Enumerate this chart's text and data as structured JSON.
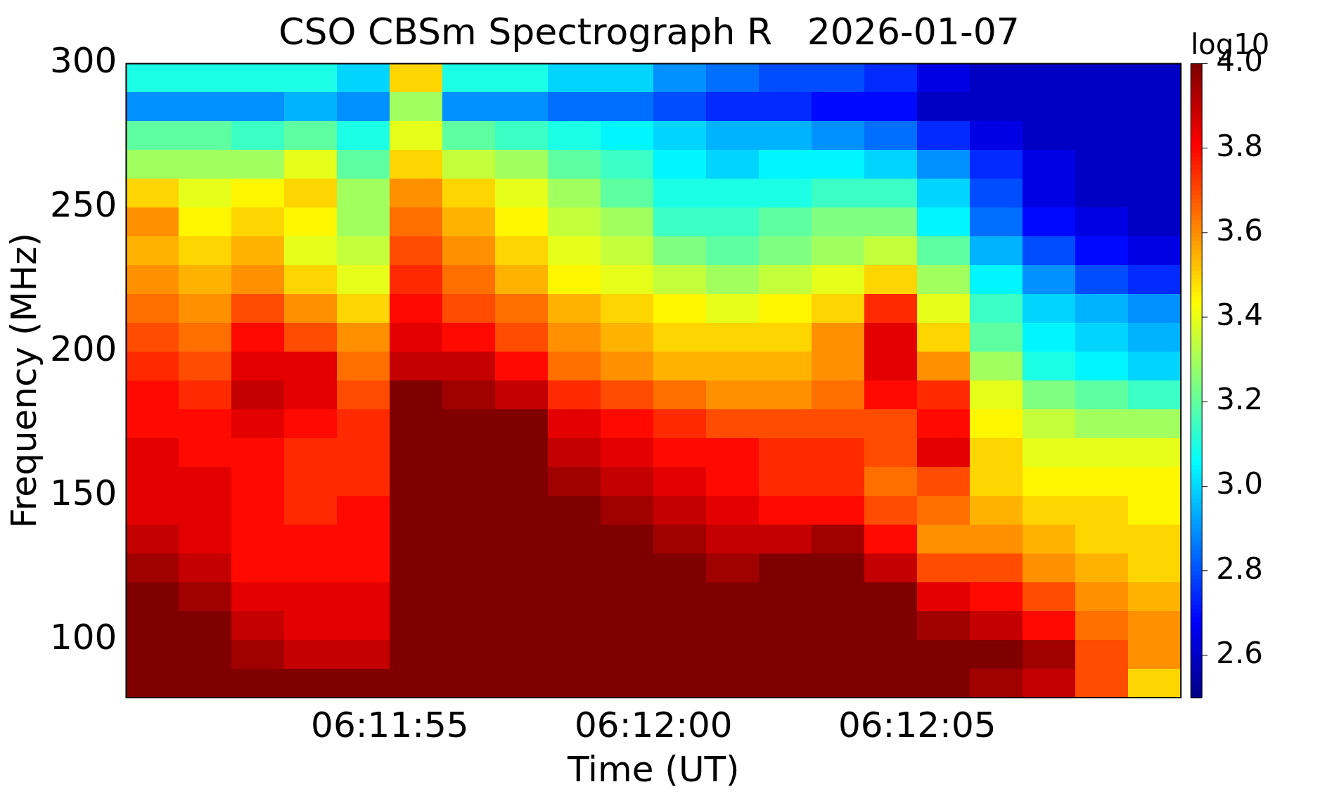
{
  "chart_data": {
    "type": "heatmap",
    "title": "CSO CBSm Spectrograph R   2026-01-07",
    "xlabel": "Time (UT)",
    "ylabel": "Frequency (MHz)",
    "clabel": "log10",
    "xlim": [
      6.1972222,
      6.2027778
    ],
    "xticks": [
      {
        "value": 6.1986111,
        "label": "06:11:55"
      },
      {
        "value": 6.2,
        "label": "06:12:00"
      },
      {
        "value": 6.2013889,
        "label": "06:12:05"
      }
    ],
    "ylim": [
      80,
      300
    ],
    "yticks": [
      100,
      150,
      200,
      250,
      300
    ],
    "clim": [
      2.5,
      4.0
    ],
    "cticks": [
      2.6,
      2.8,
      {
        "value": 3.0,
        "label": "3.0"
      },
      3.2,
      3.4,
      3.6,
      3.8,
      {
        "value": 4.0,
        "label": "4.0"
      }
    ],
    "cells": [
      [
        3.1,
        3.1,
        3.1,
        3.1,
        3.0,
        3.5,
        3.1,
        3.1,
        3.0,
        3.0,
        2.9,
        2.85,
        2.8,
        2.8,
        2.75,
        2.65,
        2.6,
        2.6,
        2.6,
        2.6
      ],
      [
        2.9,
        2.9,
        2.9,
        2.95,
        2.9,
        3.3,
        2.9,
        2.9,
        2.85,
        2.85,
        2.8,
        2.75,
        2.75,
        2.7,
        2.7,
        2.6,
        2.6,
        2.6,
        2.6,
        2.6
      ],
      [
        3.2,
        3.2,
        3.15,
        3.2,
        3.1,
        3.4,
        3.2,
        3.15,
        3.1,
        3.05,
        3.0,
        2.95,
        2.95,
        2.9,
        2.85,
        2.75,
        2.65,
        2.6,
        2.6,
        2.6
      ],
      [
        3.3,
        3.3,
        3.3,
        3.4,
        3.2,
        3.5,
        3.35,
        3.3,
        3.2,
        3.15,
        3.05,
        3.0,
        3.05,
        3.05,
        3.0,
        2.9,
        2.75,
        2.65,
        2.6,
        2.6
      ],
      [
        3.5,
        3.4,
        3.45,
        3.5,
        3.3,
        3.6,
        3.5,
        3.4,
        3.3,
        3.2,
        3.1,
        3.1,
        3.1,
        3.15,
        3.15,
        3.0,
        2.8,
        2.65,
        2.6,
        2.6
      ],
      [
        3.6,
        3.45,
        3.5,
        3.45,
        3.3,
        3.65,
        3.55,
        3.45,
        3.35,
        3.3,
        3.15,
        3.15,
        3.2,
        3.25,
        3.25,
        3.05,
        2.85,
        2.7,
        2.65,
        2.6
      ],
      [
        3.55,
        3.5,
        3.55,
        3.4,
        3.35,
        3.7,
        3.6,
        3.5,
        3.4,
        3.35,
        3.25,
        3.2,
        3.25,
        3.3,
        3.35,
        3.2,
        2.95,
        2.8,
        2.7,
        2.65
      ],
      [
        3.6,
        3.55,
        3.6,
        3.5,
        3.4,
        3.75,
        3.65,
        3.55,
        3.45,
        3.4,
        3.35,
        3.3,
        3.35,
        3.4,
        3.5,
        3.3,
        3.05,
        2.9,
        2.8,
        2.75
      ],
      [
        3.65,
        3.6,
        3.7,
        3.6,
        3.5,
        3.8,
        3.7,
        3.65,
        3.55,
        3.5,
        3.45,
        3.4,
        3.45,
        3.5,
        3.75,
        3.4,
        3.15,
        3.0,
        2.95,
        2.9
      ],
      [
        3.7,
        3.65,
        3.8,
        3.7,
        3.6,
        3.85,
        3.8,
        3.7,
        3.6,
        3.55,
        3.5,
        3.5,
        3.5,
        3.6,
        3.85,
        3.5,
        3.2,
        3.05,
        3.0,
        2.95
      ],
      [
        3.75,
        3.7,
        3.85,
        3.85,
        3.65,
        3.9,
        3.9,
        3.8,
        3.65,
        3.6,
        3.55,
        3.55,
        3.55,
        3.6,
        3.85,
        3.6,
        3.3,
        3.1,
        3.05,
        3.0
      ],
      [
        3.8,
        3.75,
        3.9,
        3.85,
        3.7,
        4.0,
        3.95,
        3.9,
        3.75,
        3.7,
        3.65,
        3.6,
        3.6,
        3.65,
        3.8,
        3.75,
        3.4,
        3.25,
        3.2,
        3.15
      ],
      [
        3.8,
        3.8,
        3.85,
        3.8,
        3.75,
        4.0,
        4.0,
        4.0,
        3.85,
        3.8,
        3.75,
        3.7,
        3.7,
        3.7,
        3.7,
        3.8,
        3.45,
        3.35,
        3.3,
        3.3
      ],
      [
        3.85,
        3.8,
        3.8,
        3.75,
        3.75,
        4.0,
        4.0,
        4.0,
        3.9,
        3.85,
        3.8,
        3.8,
        3.75,
        3.75,
        3.7,
        3.85,
        3.5,
        3.4,
        3.4,
        3.4
      ],
      [
        3.85,
        3.85,
        3.8,
        3.75,
        3.75,
        4.0,
        4.0,
        4.0,
        3.95,
        3.9,
        3.85,
        3.8,
        3.75,
        3.75,
        3.65,
        3.7,
        3.5,
        3.45,
        3.45,
        3.45
      ],
      [
        3.85,
        3.85,
        3.8,
        3.75,
        3.8,
        4.0,
        4.0,
        4.0,
        4.0,
        3.95,
        3.9,
        3.85,
        3.8,
        3.8,
        3.7,
        3.65,
        3.55,
        3.5,
        3.5,
        3.45
      ],
      [
        3.9,
        3.85,
        3.8,
        3.8,
        3.8,
        4.0,
        4.0,
        4.0,
        4.0,
        4.0,
        3.95,
        3.9,
        3.9,
        3.95,
        3.8,
        3.6,
        3.6,
        3.55,
        3.5,
        3.5
      ],
      [
        3.95,
        3.9,
        3.8,
        3.8,
        3.8,
        4.0,
        4.0,
        4.0,
        4.0,
        4.0,
        4.0,
        3.95,
        4.0,
        4.0,
        3.9,
        3.7,
        3.7,
        3.6,
        3.55,
        3.5
      ],
      [
        4.0,
        3.95,
        3.85,
        3.85,
        3.85,
        4.0,
        4.0,
        4.0,
        4.0,
        4.0,
        4.0,
        4.0,
        4.0,
        4.0,
        4.0,
        3.85,
        3.8,
        3.7,
        3.6,
        3.55
      ],
      [
        4.0,
        4.0,
        3.9,
        3.85,
        3.85,
        4.0,
        4.0,
        4.0,
        4.0,
        4.0,
        4.0,
        4.0,
        4.0,
        4.0,
        4.0,
        3.95,
        3.9,
        3.8,
        3.65,
        3.6
      ],
      [
        4.0,
        4.0,
        3.95,
        3.9,
        3.9,
        4.0,
        4.0,
        4.0,
        4.0,
        4.0,
        4.0,
        4.0,
        4.0,
        4.0,
        4.0,
        4.0,
        4.0,
        3.95,
        3.7,
        3.6
      ],
      [
        4.0,
        4.0,
        4.0,
        4.0,
        4.0,
        4.0,
        4.0,
        4.0,
        4.0,
        4.0,
        4.0,
        4.0,
        4.0,
        4.0,
        4.0,
        4.0,
        3.95,
        3.9,
        3.7,
        3.5
      ]
    ]
  }
}
